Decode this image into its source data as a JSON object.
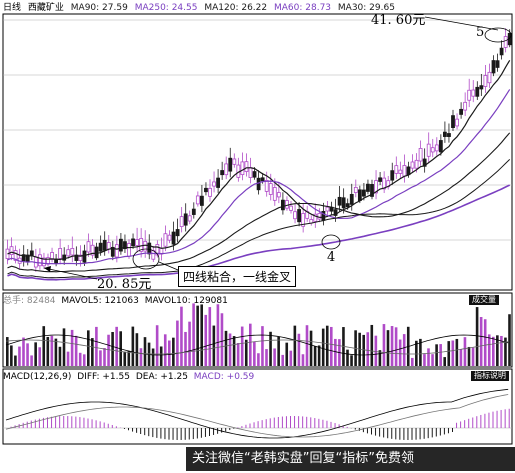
{
  "header": {
    "period": "日线",
    "stock": "西藏矿业",
    "ma": [
      {
        "label": "MA90: 27.59",
        "color": "#1a1a1a"
      },
      {
        "label": "MA250: 24.55",
        "color": "#7a3fc0"
      },
      {
        "label": "MA120: 26.22",
        "color": "#1a1a1a"
      },
      {
        "label": "MA60: 28.73",
        "color": "#7a3fc0"
      },
      {
        "label": "MA30: 29.65",
        "color": "#1a1a1a"
      }
    ]
  },
  "annotations": {
    "high_price": "41. 60元",
    "high_marker": "5",
    "low_price": "20. 85元",
    "golden_cross": "四线粘合，一线金叉",
    "marker_4": "4"
  },
  "volume_panel": {
    "header_prefix": "总手: 82484",
    "mavol5": "MAVOL5: 121063",
    "mavol10": "MAVOL10: 129081",
    "button": "成交量"
  },
  "macd_panel": {
    "macd_label": "MACD(12,26,9)",
    "diff": "DIFF: +1.55",
    "dea": "DEA: +1.25",
    "macd": "MACD: +0.59",
    "button": "指标说明"
  },
  "watermark": "关注微信“老韩实盘”回复“指标”免费领",
  "colors": {
    "up": "#b04bc8",
    "down": "#1a1a1a",
    "ma_purple": "#7a3fc0",
    "ma_dark": "#1a1a1a",
    "grid": "#b0b0b0"
  },
  "chart_data": {
    "type": "line",
    "price_range": [
      20.85,
      41.6
    ],
    "moving_averages": [
      {
        "name": "MA90",
        "last": 27.59
      },
      {
        "name": "MA250",
        "last": 24.55
      },
      {
        "name": "MA120",
        "last": 26.22
      },
      {
        "name": "MA60",
        "last": 28.73
      },
      {
        "name": "MA30",
        "last": 29.65
      }
    ],
    "volume": {
      "total": 82484,
      "MAVOL5": 121063,
      "MAVOL10": 129081
    },
    "macd": {
      "DIFF": 1.55,
      "DEA": 1.25,
      "MACD": 0.59
    }
  }
}
